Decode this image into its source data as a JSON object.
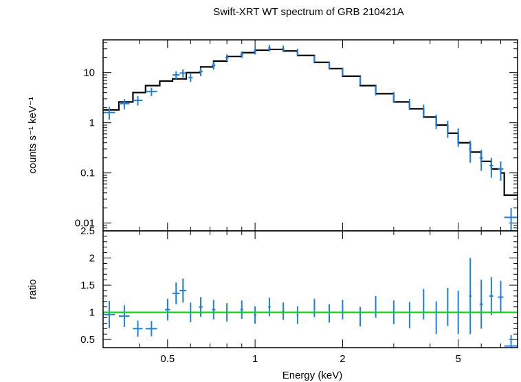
{
  "chart_data": [
    {
      "type": "scatter",
      "title": "Swift-XRT WT spectrum of GRB 210421A",
      "xlabel": "",
      "ylabel": "counts s⁻¹ keV⁻¹",
      "yscale": "log",
      "xscale": "log",
      "xlim": [
        0.3,
        8.0
      ],
      "ylim": [
        0.007,
        45
      ],
      "yticks": [
        {
          "value": 0.01,
          "label": "0.01"
        },
        {
          "value": 0.1,
          "label": "0.1"
        },
        {
          "value": 1,
          "label": "1"
        },
        {
          "value": 10,
          "label": "10"
        }
      ],
      "series": [
        {
          "kind": "data",
          "color": "#1e7ee8",
          "points": [
            {
              "x": 0.315,
              "y": 1.6,
              "xerr": [
                0.3,
                0.33
              ],
              "yerr": 0.45
            },
            {
              "x": 0.355,
              "y": 2.4,
              "xerr": [
                0.34,
                0.37
              ],
              "yerr": 0.55
            },
            {
              "x": 0.395,
              "y": 2.8,
              "xerr": [
                0.38,
                0.41
              ],
              "yerr": 0.6
            },
            {
              "x": 0.44,
              "y": 4.2,
              "xerr": [
                0.42,
                0.46
              ],
              "yerr": 0.8
            },
            {
              "x": 0.535,
              "y": 9.0,
              "xerr": [
                0.52,
                0.55
              ],
              "yerr": 1.6
            },
            {
              "x": 0.565,
              "y": 9.8,
              "xerr": [
                0.55,
                0.58
              ],
              "yerr": 1.8
            },
            {
              "x": 0.6,
              "y": 8.0,
              "xerr": [
                0.59,
                0.61
              ],
              "yerr": 1.5
            },
            {
              "x": 0.65,
              "y": 10.5,
              "xerr": [
                0.64,
                0.66
              ],
              "yerr": 2.0
            },
            {
              "x": 0.72,
              "y": 14.0,
              "xerr": [
                0.71,
                0.73
              ],
              "yerr": 2.5
            },
            {
              "x": 0.8,
              "y": 20.0,
              "xerr": [
                0.79,
                0.81
              ],
              "yerr": 3.0
            },
            {
              "x": 0.9,
              "y": 23.0,
              "xerr": [
                0.89,
                0.91
              ],
              "yerr": 3.5
            },
            {
              "x": 1.0,
              "y": 27.0,
              "xerr": [
                0.99,
                1.01
              ],
              "yerr": 4.0
            },
            {
              "x": 1.12,
              "y": 31.0,
              "xerr": [
                1.11,
                1.13
              ],
              "yerr": 4.5
            },
            {
              "x": 1.25,
              "y": 30.0,
              "xerr": [
                1.24,
                1.26
              ],
              "yerr": 4.5
            },
            {
              "x": 1.4,
              "y": 26.0,
              "xerr": [
                1.39,
                1.41
              ],
              "yerr": 4.0
            },
            {
              "x": 1.6,
              "y": 19.0,
              "xerr": [
                1.59,
                1.61
              ],
              "yerr": 3.0
            },
            {
              "x": 1.8,
              "y": 14.0,
              "xerr": [
                1.79,
                1.81
              ],
              "yerr": 2.5
            },
            {
              "x": 2.0,
              "y": 10.5,
              "xerr": [
                1.99,
                2.01
              ],
              "yerr": 2.0
            },
            {
              "x": 2.3,
              "y": 7.0,
              "xerr": [
                2.29,
                2.31
              ],
              "yerr": 1.4
            },
            {
              "x": 2.6,
              "y": 4.5,
              "xerr": [
                2.59,
                2.61
              ],
              "yerr": 1.0
            },
            {
              "x": 3.0,
              "y": 3.3,
              "xerr": [
                2.99,
                3.01
              ],
              "yerr": 0.8
            },
            {
              "x": 3.4,
              "y": 2.4,
              "xerr": [
                3.38,
                3.42
              ],
              "yerr": 0.6
            },
            {
              "x": 3.8,
              "y": 1.8,
              "xerr": [
                3.78,
                3.82
              ],
              "yerr": 0.5
            },
            {
              "x": 4.2,
              "y": 1.1,
              "xerr": [
                4.18,
                4.22
              ],
              "yerr": 0.35
            },
            {
              "x": 4.6,
              "y": 0.8,
              "xerr": [
                4.58,
                4.62
              ],
              "yerr": 0.3
            },
            {
              "x": 5.0,
              "y": 0.55,
              "xerr": [
                4.97,
                5.03
              ],
              "yerr": 0.22
            },
            {
              "x": 5.5,
              "y": 0.3,
              "xerr": [
                5.45,
                5.55
              ],
              "yerr": 0.14
            },
            {
              "x": 6.0,
              "y": 0.2,
              "xerr": [
                5.92,
                6.08
              ],
              "yerr": 0.09
            },
            {
              "x": 6.5,
              "y": 0.14,
              "xerr": [
                6.4,
                6.6
              ],
              "yerr": 0.06
            },
            {
              "x": 7.0,
              "y": 0.12,
              "xerr": [
                6.85,
                7.15
              ],
              "yerr": 0.05
            },
            {
              "x": 7.6,
              "y": 0.013,
              "xerr": [
                7.2,
                8.0
              ],
              "yerr": 0.007
            }
          ]
        },
        {
          "kind": "model",
          "color": "#000000",
          "steps": [
            {
              "x0": 0.3,
              "x1": 0.34,
              "y": 1.8
            },
            {
              "x0": 0.34,
              "x1": 0.38,
              "y": 2.6
            },
            {
              "x0": 0.38,
              "x1": 0.42,
              "y": 4.0
            },
            {
              "x0": 0.42,
              "x1": 0.47,
              "y": 5.5
            },
            {
              "x0": 0.47,
              "x1": 0.52,
              "y": 6.8
            },
            {
              "x0": 0.52,
              "x1": 0.58,
              "y": 7.5
            },
            {
              "x0": 0.58,
              "x1": 0.65,
              "y": 10.0
            },
            {
              "x0": 0.65,
              "x1": 0.72,
              "y": 13.0
            },
            {
              "x0": 0.72,
              "x1": 0.8,
              "y": 17.0
            },
            {
              "x0": 0.8,
              "x1": 0.9,
              "y": 21.0
            },
            {
              "x0": 0.9,
              "x1": 1.0,
              "y": 25.0
            },
            {
              "x0": 1.0,
              "x1": 1.12,
              "y": 28.0
            },
            {
              "x0": 1.12,
              "x1": 1.25,
              "y": 29.0
            },
            {
              "x0": 1.25,
              "x1": 1.4,
              "y": 27.0
            },
            {
              "x0": 1.4,
              "x1": 1.6,
              "y": 22.0
            },
            {
              "x0": 1.6,
              "x1": 1.8,
              "y": 16.0
            },
            {
              "x0": 1.8,
              "x1": 2.0,
              "y": 12.0
            },
            {
              "x0": 2.0,
              "x1": 2.3,
              "y": 8.5
            },
            {
              "x0": 2.3,
              "x1": 2.6,
              "y": 5.5
            },
            {
              "x0": 2.6,
              "x1": 3.0,
              "y": 3.8
            },
            {
              "x0": 3.0,
              "x1": 3.4,
              "y": 2.6
            },
            {
              "x0": 3.4,
              "x1": 3.8,
              "y": 1.9
            },
            {
              "x0": 3.8,
              "x1": 4.2,
              "y": 1.3
            },
            {
              "x0": 4.2,
              "x1": 4.6,
              "y": 0.9
            },
            {
              "x0": 4.6,
              "x1": 5.0,
              "y": 0.62
            },
            {
              "x0": 5.0,
              "x1": 5.5,
              "y": 0.4
            },
            {
              "x0": 5.5,
              "x1": 6.0,
              "y": 0.26
            },
            {
              "x0": 6.0,
              "x1": 6.5,
              "y": 0.17
            },
            {
              "x0": 6.5,
              "x1": 7.0,
              "y": 0.12
            },
            {
              "x0": 7.0,
              "x1": 7.2,
              "y": 0.1
            },
            {
              "x0": 7.2,
              "x1": 8.0,
              "y": 0.036
            }
          ]
        }
      ]
    },
    {
      "type": "scatter",
      "title": "",
      "xlabel": "Energy (keV)",
      "ylabel": "ratio",
      "xscale": "log",
      "yscale": "linear",
      "xlim": [
        0.3,
        8.0
      ],
      "ylim": [
        0.35,
        2.5
      ],
      "xticks": [
        {
          "value": 0.5,
          "label": "0.5"
        },
        {
          "value": 1,
          "label": "1"
        },
        {
          "value": 2,
          "label": "2"
        },
        {
          "value": 5,
          "label": "5"
        }
      ],
      "yticks": [
        {
          "value": 0.5,
          "label": "0.5"
        },
        {
          "value": 1,
          "label": "1"
        },
        {
          "value": 1.5,
          "label": "1.5"
        },
        {
          "value": 2,
          "label": "2"
        },
        {
          "value": 2.5,
          "label": "2.5"
        }
      ],
      "reference_line": {
        "y": 1.0,
        "color": "#00dd00"
      },
      "series": [
        {
          "kind": "data",
          "color": "#1e7ee8",
          "points": [
            {
              "x": 0.315,
              "y": 0.96,
              "xerr": [
                0.3,
                0.33
              ],
              "yerr": 0.25
            },
            {
              "x": 0.355,
              "y": 0.93,
              "xerr": [
                0.34,
                0.37
              ],
              "yerr": 0.2
            },
            {
              "x": 0.395,
              "y": 0.7,
              "xerr": [
                0.38,
                0.41
              ],
              "yerr": 0.15
            },
            {
              "x": 0.44,
              "y": 0.7,
              "xerr": [
                0.42,
                0.46
              ],
              "yerr": 0.14
            },
            {
              "x": 0.5,
              "y": 1.05,
              "xerr": [
                0.49,
                0.51
              ],
              "yerr": 0.2
            },
            {
              "x": 0.535,
              "y": 1.35,
              "xerr": [
                0.52,
                0.55
              ],
              "yerr": 0.2
            },
            {
              "x": 0.565,
              "y": 1.4,
              "xerr": [
                0.55,
                0.58
              ],
              "yerr": 0.22
            },
            {
              "x": 0.6,
              "y": 1.0,
              "xerr": [
                0.59,
                0.61
              ],
              "yerr": 0.18
            },
            {
              "x": 0.65,
              "y": 1.1,
              "xerr": [
                0.64,
                0.66
              ],
              "yerr": 0.18
            },
            {
              "x": 0.72,
              "y": 1.05,
              "xerr": [
                0.71,
                0.73
              ],
              "yerr": 0.18
            },
            {
              "x": 0.8,
              "y": 1.0,
              "xerr": [
                0.79,
                0.81
              ],
              "yerr": 0.17
            },
            {
              "x": 0.9,
              "y": 1.05,
              "xerr": [
                0.89,
                0.91
              ],
              "yerr": 0.17
            },
            {
              "x": 1.0,
              "y": 0.95,
              "xerr": [
                0.99,
                1.01
              ],
              "yerr": 0.16
            },
            {
              "x": 1.12,
              "y": 1.1,
              "xerr": [
                1.11,
                1.13
              ],
              "yerr": 0.17
            },
            {
              "x": 1.25,
              "y": 1.02,
              "xerr": [
                1.24,
                1.26
              ],
              "yerr": 0.16
            },
            {
              "x": 1.4,
              "y": 0.95,
              "xerr": [
                1.39,
                1.41
              ],
              "yerr": 0.16
            },
            {
              "x": 1.6,
              "y": 1.08,
              "xerr": [
                1.59,
                1.61
              ],
              "yerr": 0.17
            },
            {
              "x": 1.8,
              "y": 0.98,
              "xerr": [
                1.79,
                1.81
              ],
              "yerr": 0.17
            },
            {
              "x": 2.0,
              "y": 1.05,
              "xerr": [
                1.99,
                2.01
              ],
              "yerr": 0.18
            },
            {
              "x": 2.3,
              "y": 0.92,
              "xerr": [
                2.29,
                2.31
              ],
              "yerr": 0.18
            },
            {
              "x": 2.6,
              "y": 1.1,
              "xerr": [
                2.59,
                2.61
              ],
              "yerr": 0.2
            },
            {
              "x": 3.0,
              "y": 1.0,
              "xerr": [
                2.99,
                3.01
              ],
              "yerr": 0.22
            },
            {
              "x": 3.4,
              "y": 0.95,
              "xerr": [
                3.38,
                3.42
              ],
              "yerr": 0.24
            },
            {
              "x": 3.8,
              "y": 1.15,
              "xerr": [
                3.78,
                3.82
              ],
              "yerr": 0.28
            },
            {
              "x": 4.2,
              "y": 0.9,
              "xerr": [
                4.18,
                4.22
              ],
              "yerr": 0.3
            },
            {
              "x": 4.6,
              "y": 1.1,
              "xerr": [
                4.58,
                4.62
              ],
              "yerr": 0.35
            },
            {
              "x": 5.0,
              "y": 1.0,
              "xerr": [
                4.97,
                5.03
              ],
              "yerr": 0.4
            },
            {
              "x": 5.5,
              "y": 1.3,
              "xerr": [
                5.45,
                5.55
              ],
              "yerr": 0.7
            },
            {
              "x": 6.0,
              "y": 1.15,
              "xerr": [
                5.92,
                6.08
              ],
              "yerr": 0.45
            },
            {
              "x": 6.5,
              "y": 1.3,
              "xerr": [
                6.4,
                6.6
              ],
              "yerr": 0.35
            },
            {
              "x": 7.0,
              "y": 1.28,
              "xerr": [
                6.85,
                7.15
              ],
              "yerr": 0.3
            },
            {
              "x": 7.6,
              "y": 0.38,
              "xerr": [
                7.2,
                8.0
              ],
              "yerr": 0.2
            }
          ]
        }
      ]
    }
  ]
}
